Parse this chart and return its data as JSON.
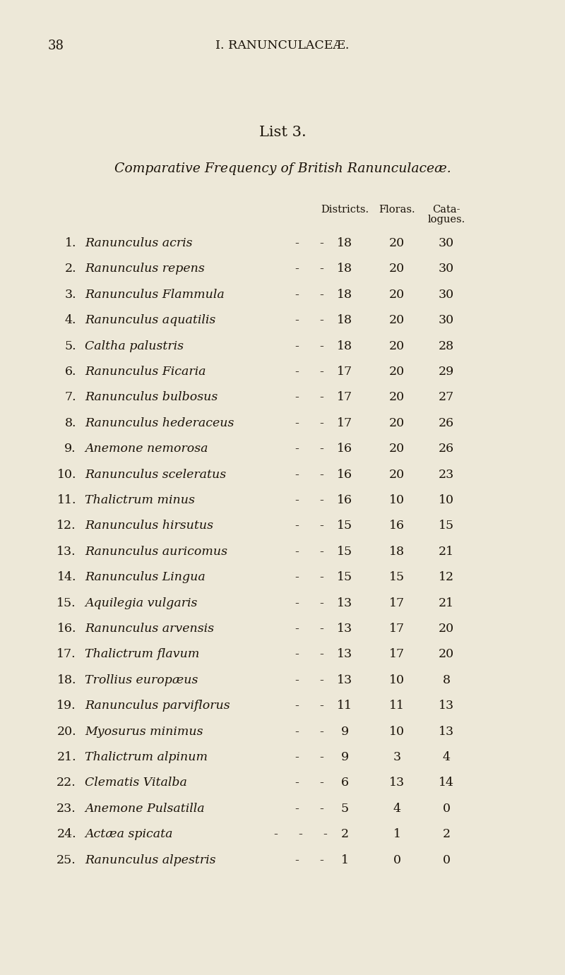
{
  "page_number": "38",
  "header": "I. RANUNCULACEÆ.",
  "list_title": "List 3.",
  "subtitle": "Comparative Frequency of British Ranunculaceæ.",
  "col_headers": [
    "Districts.",
    "Floras.",
    "Cata-",
    "logues."
  ],
  "rows": [
    {
      "num": "1.",
      "name": "Ranunculus acris",
      "extra_dash": false,
      "districts": "18",
      "floras": "20",
      "catalogues": "30"
    },
    {
      "num": "2.",
      "name": "Ranunculus repens",
      "extra_dash": false,
      "districts": "18",
      "floras": "20",
      "catalogues": "30"
    },
    {
      "num": "3.",
      "name": "Ranunculus Flammula",
      "extra_dash": false,
      "districts": "18",
      "floras": "20",
      "catalogues": "30"
    },
    {
      "num": "4.",
      "name": "Ranunculus aquatilis",
      "extra_dash": false,
      "districts": "18",
      "floras": "20",
      "catalogues": "30"
    },
    {
      "num": "5.",
      "name": "Caltha palustris",
      "extra_dash": false,
      "districts": "18",
      "floras": "20",
      "catalogues": "28"
    },
    {
      "num": "6.",
      "name": "Ranunculus Ficaria",
      "extra_dash": false,
      "districts": "17",
      "floras": "20",
      "catalogues": "29"
    },
    {
      "num": "7.",
      "name": "Ranunculus bulbosus",
      "extra_dash": false,
      "districts": "17",
      "floras": "20",
      "catalogues": "27"
    },
    {
      "num": "8.",
      "name": "Ranunculus hederaceus",
      "extra_dash": false,
      "districts": "17",
      "floras": "20",
      "catalogues": "26"
    },
    {
      "num": "9.",
      "name": "Anemone nemorosa",
      "extra_dash": false,
      "districts": "16",
      "floras": "20",
      "catalogues": "26"
    },
    {
      "num": "10.",
      "name": "Ranunculus sceleratus",
      "extra_dash": false,
      "districts": "16",
      "floras": "20",
      "catalogues": "23"
    },
    {
      "num": "11.",
      "name": "Thalictrum minus",
      "extra_dash": false,
      "districts": "16",
      "floras": "10",
      "catalogues": "10"
    },
    {
      "num": "12.",
      "name": "Ranunculus hirsutus",
      "extra_dash": false,
      "districts": "15",
      "floras": "16",
      "catalogues": "15"
    },
    {
      "num": "13.",
      "name": "Ranunculus auricomus",
      "extra_dash": false,
      "districts": "15",
      "floras": "18",
      "catalogues": "21"
    },
    {
      "num": "14.",
      "name": "Ranunculus Lingua",
      "extra_dash": false,
      "districts": "15",
      "floras": "15",
      "catalogues": "12"
    },
    {
      "num": "15.",
      "name": "Aquilegia vulgaris",
      "extra_dash": false,
      "districts": "13",
      "floras": "17",
      "catalogues": "21"
    },
    {
      "num": "16.",
      "name": "Ranunculus arvensis",
      "extra_dash": false,
      "districts": "13",
      "floras": "17",
      "catalogues": "20"
    },
    {
      "num": "17.",
      "name": "Thalictrum flavum",
      "extra_dash": false,
      "districts": "13",
      "floras": "17",
      "catalogues": "20"
    },
    {
      "num": "18.",
      "name": "Trollius europæus",
      "extra_dash": false,
      "districts": "13",
      "floras": "10",
      "catalogues": "8"
    },
    {
      "num": "19.",
      "name": "Ranunculus parviflorus",
      "extra_dash": false,
      "districts": "11",
      "floras": "11",
      "catalogues": "13"
    },
    {
      "num": "20.",
      "name": "Myosurus minimus",
      "extra_dash": false,
      "districts": "9",
      "floras": "10",
      "catalogues": "13"
    },
    {
      "num": "21.",
      "name": "Thalictrum alpinum",
      "extra_dash": false,
      "districts": "9",
      "floras": "3",
      "catalogues": "4"
    },
    {
      "num": "22.",
      "name": "Clematis Vitalba",
      "extra_dash": false,
      "districts": "6",
      "floras": "13",
      "catalogues": "14"
    },
    {
      "num": "23.",
      "name": "Anemone Pulsatilla",
      "extra_dash": false,
      "districts": "5",
      "floras": "4",
      "catalogues": "0"
    },
    {
      "num": "24.",
      "name": "Actæa spicata",
      "extra_dash": true,
      "districts": "2",
      "floras": "1",
      "catalogues": "2"
    },
    {
      "num": "25.",
      "name": "Ranunculus alpestris",
      "extra_dash": false,
      "districts": "1",
      "floras": "0",
      "catalogues": "0"
    }
  ],
  "bg_color": "#ede8d8",
  "text_color": "#1a1208",
  "header_fontsize": 12.5,
  "title_fontsize": 15,
  "subtitle_fontsize": 13.5,
  "col_header_fontsize": 10.5,
  "row_fontsize": 12.5,
  "page_num_fontsize": 13
}
